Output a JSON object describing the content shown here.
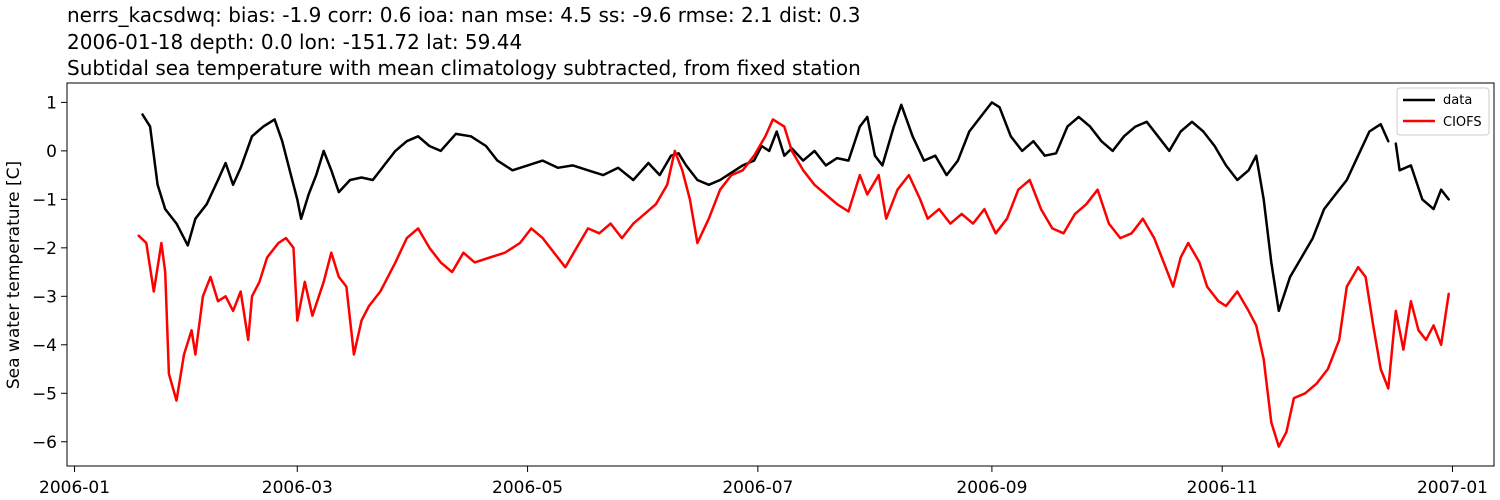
{
  "chart_data": {
    "type": "line",
    "title_lines": [
      "nerrs_kacsdwq: bias: -1.9  corr: 0.6  ioa: nan  mse: 4.5  ss: -9.6  rmse: 2.1  dist: 0.3",
      "2006-01-18 depth: 0.0 lon: -151.72 lat: 59.44",
      "Subtidal sea temperature with mean climatology subtracted, from fixed station"
    ],
    "xlabel": "",
    "ylabel": "Sea water temperature [C]",
    "xlim": [
      "2005-12-30",
      "2007-01-12"
    ],
    "ylim": [
      -6.5,
      1.4
    ],
    "x_ticks": [
      "2006-01-01",
      "2006-03-01",
      "2006-05-01",
      "2006-07-01",
      "2006-09-01",
      "2006-11-01",
      "2007-01-01"
    ],
    "x_tick_labels": [
      "2006-01",
      "2006-03",
      "2006-05",
      "2006-07",
      "2006-09",
      "2006-11",
      "2007-01"
    ],
    "y_ticks": [
      1,
      0,
      -1,
      -2,
      -3,
      -4,
      -5,
      -6
    ],
    "y_tick_labels": [
      "1",
      "0",
      "−1",
      "−2",
      "−3",
      "−4",
      "−5",
      "−6"
    ],
    "grid": false,
    "legend_position": "top-right",
    "series": [
      {
        "name": "data",
        "color": "#000000",
        "points": [
          [
            "2006-01-19",
            0.75
          ],
          [
            "2006-01-21",
            0.5
          ],
          [
            "2006-01-23",
            -0.7
          ],
          [
            "2006-01-25",
            -1.2
          ],
          [
            "2006-01-28",
            -1.5
          ],
          [
            "2006-01-31",
            -1.95
          ],
          [
            "2006-02-02",
            -1.4
          ],
          [
            "2006-02-05",
            -1.1
          ],
          [
            "2006-02-08",
            -0.6
          ],
          [
            "2006-02-10",
            -0.25
          ],
          [
            "2006-02-12",
            -0.7
          ],
          [
            "2006-02-14",
            -0.35
          ],
          [
            "2006-02-17",
            0.3
          ],
          [
            "2006-02-20",
            0.5
          ],
          [
            "2006-02-23",
            0.65
          ],
          [
            "2006-02-25",
            0.2
          ],
          [
            "2006-02-27",
            -0.4
          ],
          [
            "2006-03-01",
            -1.0
          ],
          [
            "2006-03-02",
            -1.4
          ],
          [
            "2006-03-04",
            -0.9
          ],
          [
            "2006-03-06",
            -0.5
          ],
          [
            "2006-03-08",
            0.0
          ],
          [
            "2006-03-10",
            -0.4
          ],
          [
            "2006-03-12",
            -0.85
          ],
          [
            "2006-03-15",
            -0.6
          ],
          [
            "2006-03-18",
            -0.55
          ],
          [
            "2006-03-21",
            -0.6
          ],
          [
            "2006-03-24",
            -0.3
          ],
          [
            "2006-03-27",
            0.0
          ],
          [
            "2006-03-30",
            0.2
          ],
          [
            "2006-04-02",
            0.3
          ],
          [
            "2006-04-05",
            0.1
          ],
          [
            "2006-04-08",
            0.0
          ],
          [
            "2006-04-12",
            0.35
          ],
          [
            "2006-04-16",
            0.3
          ],
          [
            "2006-04-20",
            0.1
          ],
          [
            "2006-04-23",
            -0.2
          ],
          [
            "2006-04-27",
            -0.4
          ],
          [
            "2006-05-01",
            -0.3
          ],
          [
            "2006-05-05",
            -0.2
          ],
          [
            "2006-05-09",
            -0.35
          ],
          [
            "2006-05-13",
            -0.3
          ],
          [
            "2006-05-17",
            -0.4
          ],
          [
            "2006-05-21",
            -0.5
          ],
          [
            "2006-05-25",
            -0.35
          ],
          [
            "2006-05-29",
            -0.6
          ],
          [
            "2006-06-02",
            -0.25
          ],
          [
            "2006-06-05",
            -0.5
          ],
          [
            "2006-06-08",
            -0.1
          ],
          [
            "2006-06-10",
            -0.05
          ],
          [
            "2006-06-12",
            -0.3
          ],
          [
            "2006-06-15",
            -0.6
          ],
          [
            "2006-06-18",
            -0.7
          ],
          [
            "2006-06-21",
            -0.6
          ],
          [
            "2006-06-24",
            -0.45
          ],
          [
            "2006-06-27",
            -0.3
          ],
          [
            "2006-06-30",
            -0.2
          ],
          [
            "2006-07-02",
            0.1
          ],
          [
            "2006-07-04",
            0.0
          ],
          [
            "2006-07-06",
            0.4
          ],
          [
            "2006-07-08",
            -0.1
          ],
          [
            "2006-07-10",
            0.05
          ],
          [
            "2006-07-13",
            -0.2
          ],
          [
            "2006-07-16",
            0.0
          ],
          [
            "2006-07-19",
            -0.3
          ],
          [
            "2006-07-22",
            -0.15
          ],
          [
            "2006-07-25",
            -0.2
          ],
          [
            "2006-07-28",
            0.5
          ],
          [
            "2006-07-30",
            0.7
          ],
          [
            "2006-08-01",
            -0.1
          ],
          [
            "2006-08-03",
            -0.3
          ],
          [
            "2006-08-06",
            0.5
          ],
          [
            "2006-08-08",
            0.95
          ],
          [
            "2006-08-11",
            0.3
          ],
          [
            "2006-08-14",
            -0.2
          ],
          [
            "2006-08-17",
            -0.1
          ],
          [
            "2006-08-20",
            -0.5
          ],
          [
            "2006-08-23",
            -0.2
          ],
          [
            "2006-08-26",
            0.4
          ],
          [
            "2006-08-29",
            0.7
          ],
          [
            "2006-09-01",
            1.0
          ],
          [
            "2006-09-03",
            0.9
          ],
          [
            "2006-09-06",
            0.3
          ],
          [
            "2006-09-09",
            0.0
          ],
          [
            "2006-09-12",
            0.2
          ],
          [
            "2006-09-15",
            -0.1
          ],
          [
            "2006-09-18",
            -0.05
          ],
          [
            "2006-09-21",
            0.5
          ],
          [
            "2006-09-24",
            0.7
          ],
          [
            "2006-09-27",
            0.5
          ],
          [
            "2006-09-30",
            0.2
          ],
          [
            "2006-10-03",
            0.0
          ],
          [
            "2006-10-06",
            0.3
          ],
          [
            "2006-10-09",
            0.5
          ],
          [
            "2006-10-12",
            0.6
          ],
          [
            "2006-10-15",
            0.3
          ],
          [
            "2006-10-18",
            0.0
          ],
          [
            "2006-10-21",
            0.4
          ],
          [
            "2006-10-24",
            0.6
          ],
          [
            "2006-10-27",
            0.4
          ],
          [
            "2006-10-30",
            0.1
          ],
          [
            "2006-11-02",
            -0.3
          ],
          [
            "2006-11-05",
            -0.6
          ],
          [
            "2006-11-08",
            -0.4
          ],
          [
            "2006-11-10",
            -0.1
          ],
          [
            "2006-11-12",
            -1.0
          ],
          [
            "2006-11-14",
            -2.3
          ],
          [
            "2006-11-16",
            -3.3
          ],
          [
            "2006-11-19",
            -2.6
          ],
          [
            "2006-11-22",
            -2.2
          ],
          [
            "2006-11-25",
            -1.8
          ],
          [
            "2006-11-28",
            -1.2
          ],
          [
            "2006-12-01",
            -0.9
          ],
          [
            "2006-12-04",
            -0.6
          ],
          [
            "2006-12-07",
            -0.1
          ],
          [
            "2006-12-10",
            0.4
          ],
          [
            "2006-12-13",
            0.55
          ],
          [
            "2006-12-15",
            0.2
          ],
          null,
          [
            "2006-12-17",
            0.15
          ],
          [
            "2006-12-18",
            -0.4
          ],
          [
            "2006-12-21",
            -0.3
          ],
          [
            "2006-12-24",
            -1.0
          ],
          [
            "2006-12-27",
            -1.2
          ],
          [
            "2006-12-29",
            -0.8
          ],
          [
            "2006-12-31",
            -1.0
          ]
        ]
      },
      {
        "name": "CIOFS",
        "color": "#ff0000",
        "points": [
          [
            "2006-01-18",
            -1.75
          ],
          [
            "2006-01-20",
            -1.9
          ],
          [
            "2006-01-22",
            -2.9
          ],
          [
            "2006-01-24",
            -1.9
          ],
          [
            "2006-01-25",
            -2.5
          ],
          [
            "2006-01-26",
            -4.6
          ],
          [
            "2006-01-28",
            -5.15
          ],
          [
            "2006-01-30",
            -4.2
          ],
          [
            "2006-02-01",
            -3.7
          ],
          [
            "2006-02-02",
            -4.2
          ],
          [
            "2006-02-04",
            -3.0
          ],
          [
            "2006-02-06",
            -2.6
          ],
          [
            "2006-02-08",
            -3.1
          ],
          [
            "2006-02-10",
            -3.0
          ],
          [
            "2006-02-12",
            -3.3
          ],
          [
            "2006-02-14",
            -2.9
          ],
          [
            "2006-02-16",
            -3.9
          ],
          [
            "2006-02-17",
            -3.0
          ],
          [
            "2006-02-19",
            -2.7
          ],
          [
            "2006-02-21",
            -2.2
          ],
          [
            "2006-02-24",
            -1.9
          ],
          [
            "2006-02-26",
            -1.8
          ],
          [
            "2006-02-28",
            -2.0
          ],
          [
            "2006-03-01",
            -3.5
          ],
          [
            "2006-03-03",
            -2.7
          ],
          [
            "2006-03-05",
            -3.4
          ],
          [
            "2006-03-08",
            -2.7
          ],
          [
            "2006-03-10",
            -2.1
          ],
          [
            "2006-03-12",
            -2.6
          ],
          [
            "2006-03-14",
            -2.8
          ],
          [
            "2006-03-16",
            -4.2
          ],
          [
            "2006-03-18",
            -3.5
          ],
          [
            "2006-03-20",
            -3.2
          ],
          [
            "2006-03-23",
            -2.9
          ],
          [
            "2006-03-25",
            -2.6
          ],
          [
            "2006-03-27",
            -2.3
          ],
          [
            "2006-03-30",
            -1.8
          ],
          [
            "2006-04-02",
            -1.6
          ],
          [
            "2006-04-05",
            -2.0
          ],
          [
            "2006-04-08",
            -2.3
          ],
          [
            "2006-04-11",
            -2.5
          ],
          [
            "2006-04-14",
            -2.1
          ],
          [
            "2006-04-17",
            -2.3
          ],
          [
            "2006-04-21",
            -2.2
          ],
          [
            "2006-04-25",
            -2.1
          ],
          [
            "2006-04-29",
            -1.9
          ],
          [
            "2006-05-02",
            -1.6
          ],
          [
            "2006-05-05",
            -1.8
          ],
          [
            "2006-05-08",
            -2.1
          ],
          [
            "2006-05-11",
            -2.4
          ],
          [
            "2006-05-14",
            -2.0
          ],
          [
            "2006-05-17",
            -1.6
          ],
          [
            "2006-05-20",
            -1.7
          ],
          [
            "2006-05-23",
            -1.5
          ],
          [
            "2006-05-26",
            -1.8
          ],
          [
            "2006-05-29",
            -1.5
          ],
          [
            "2006-06-01",
            -1.3
          ],
          [
            "2006-06-04",
            -1.1
          ],
          [
            "2006-06-07",
            -0.7
          ],
          [
            "2006-06-09",
            0.0
          ],
          [
            "2006-06-11",
            -0.4
          ],
          [
            "2006-06-13",
            -1.0
          ],
          [
            "2006-06-15",
            -1.9
          ],
          [
            "2006-06-18",
            -1.4
          ],
          [
            "2006-06-21",
            -0.8
          ],
          [
            "2006-06-24",
            -0.5
          ],
          [
            "2006-06-27",
            -0.4
          ],
          [
            "2006-06-30",
            -0.1
          ],
          [
            "2006-07-03",
            0.3
          ],
          [
            "2006-07-05",
            0.65
          ],
          [
            "2006-07-08",
            0.5
          ],
          [
            "2006-07-10",
            0.0
          ],
          [
            "2006-07-13",
            -0.4
          ],
          [
            "2006-07-16",
            -0.7
          ],
          [
            "2006-07-19",
            -0.9
          ],
          [
            "2006-07-22",
            -1.1
          ],
          [
            "2006-07-25",
            -1.25
          ],
          [
            "2006-07-28",
            -0.5
          ],
          [
            "2006-07-30",
            -0.9
          ],
          [
            "2006-08-02",
            -0.5
          ],
          [
            "2006-08-04",
            -1.4
          ],
          [
            "2006-08-07",
            -0.8
          ],
          [
            "2006-08-10",
            -0.5
          ],
          [
            "2006-08-13",
            -1.0
          ],
          [
            "2006-08-15",
            -1.4
          ],
          [
            "2006-08-18",
            -1.2
          ],
          [
            "2006-08-21",
            -1.5
          ],
          [
            "2006-08-24",
            -1.3
          ],
          [
            "2006-08-27",
            -1.5
          ],
          [
            "2006-08-30",
            -1.2
          ],
          [
            "2006-09-02",
            -1.7
          ],
          [
            "2006-09-05",
            -1.4
          ],
          [
            "2006-09-08",
            -0.8
          ],
          [
            "2006-09-11",
            -0.6
          ],
          [
            "2006-09-14",
            -1.2
          ],
          [
            "2006-09-17",
            -1.6
          ],
          [
            "2006-09-20",
            -1.7
          ],
          [
            "2006-09-23",
            -1.3
          ],
          [
            "2006-09-26",
            -1.1
          ],
          [
            "2006-09-29",
            -0.8
          ],
          [
            "2006-10-02",
            -1.5
          ],
          [
            "2006-10-05",
            -1.8
          ],
          [
            "2006-10-08",
            -1.7
          ],
          [
            "2006-10-11",
            -1.4
          ],
          [
            "2006-10-14",
            -1.8
          ],
          [
            "2006-10-17",
            -2.4
          ],
          [
            "2006-10-19",
            -2.8
          ],
          [
            "2006-10-21",
            -2.2
          ],
          [
            "2006-10-23",
            -1.9
          ],
          [
            "2006-10-26",
            -2.3
          ],
          [
            "2006-10-28",
            -2.8
          ],
          [
            "2006-10-31",
            -3.1
          ],
          [
            "2006-11-02",
            -3.2
          ],
          [
            "2006-11-05",
            -2.9
          ],
          [
            "2006-11-08",
            -3.3
          ],
          [
            "2006-11-10",
            -3.6
          ],
          [
            "2006-11-12",
            -4.3
          ],
          [
            "2006-11-14",
            -5.6
          ],
          [
            "2006-11-16",
            -6.1
          ],
          [
            "2006-11-18",
            -5.8
          ],
          [
            "2006-11-20",
            -5.1
          ],
          [
            "2006-11-23",
            -5.0
          ],
          [
            "2006-11-26",
            -4.8
          ],
          [
            "2006-11-29",
            -4.5
          ],
          [
            "2006-12-02",
            -3.9
          ],
          [
            "2006-12-04",
            -2.8
          ],
          [
            "2006-12-07",
            -2.4
          ],
          [
            "2006-12-09",
            -2.6
          ],
          [
            "2006-12-11",
            -3.6
          ],
          [
            "2006-12-13",
            -4.5
          ],
          [
            "2006-12-15",
            -4.9
          ],
          [
            "2006-12-17",
            -3.3
          ],
          [
            "2006-12-19",
            -4.1
          ],
          [
            "2006-12-21",
            -3.1
          ],
          [
            "2006-12-23",
            -3.7
          ],
          [
            "2006-12-25",
            -3.9
          ],
          [
            "2006-12-27",
            -3.6
          ],
          [
            "2006-12-29",
            -4.0
          ],
          [
            "2006-12-31",
            -2.95
          ]
        ]
      }
    ]
  }
}
